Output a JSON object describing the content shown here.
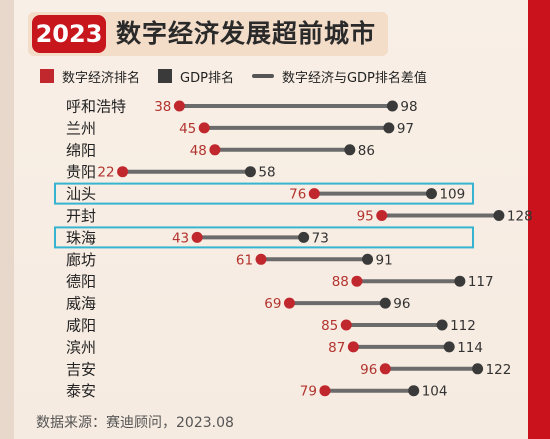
{
  "header": {
    "year": "2023",
    "title": "数字经济发展超前城市"
  },
  "legend": {
    "digital": "数字经济排名",
    "gdp": "GDP排名",
    "gap": "数字经济与GDP排名差值"
  },
  "source": "数据来源：赛迪顾问，2023.08",
  "colors": {
    "digital": "#c0282d",
    "gdp": "#3a3a3a",
    "line": "#6b6b6b",
    "highlight": "#37b5d0"
  },
  "chart_data": {
    "type": "dumbbell",
    "title": "数字经济发展超前城市",
    "categories": [
      "呼和浩特",
      "兰州",
      "绵阳",
      "贵阳",
      "汕头",
      "开封",
      "珠海",
      "廊坊",
      "德阳",
      "威海",
      "咸阳",
      "滨州",
      "吉安",
      "泰安"
    ],
    "series": [
      {
        "name": "数字经济排名",
        "values": [
          38,
          45,
          48,
          22,
          76,
          95,
          43,
          61,
          88,
          69,
          85,
          87,
          96,
          79
        ]
      },
      {
        "name": "GDP排名",
        "values": [
          98,
          97,
          86,
          58,
          109,
          128,
          73,
          91,
          117,
          96,
          112,
          114,
          122,
          104
        ]
      }
    ],
    "highlighted": [
      "汕头",
      "珠海"
    ],
    "xlim": [
      0,
      140
    ]
  }
}
